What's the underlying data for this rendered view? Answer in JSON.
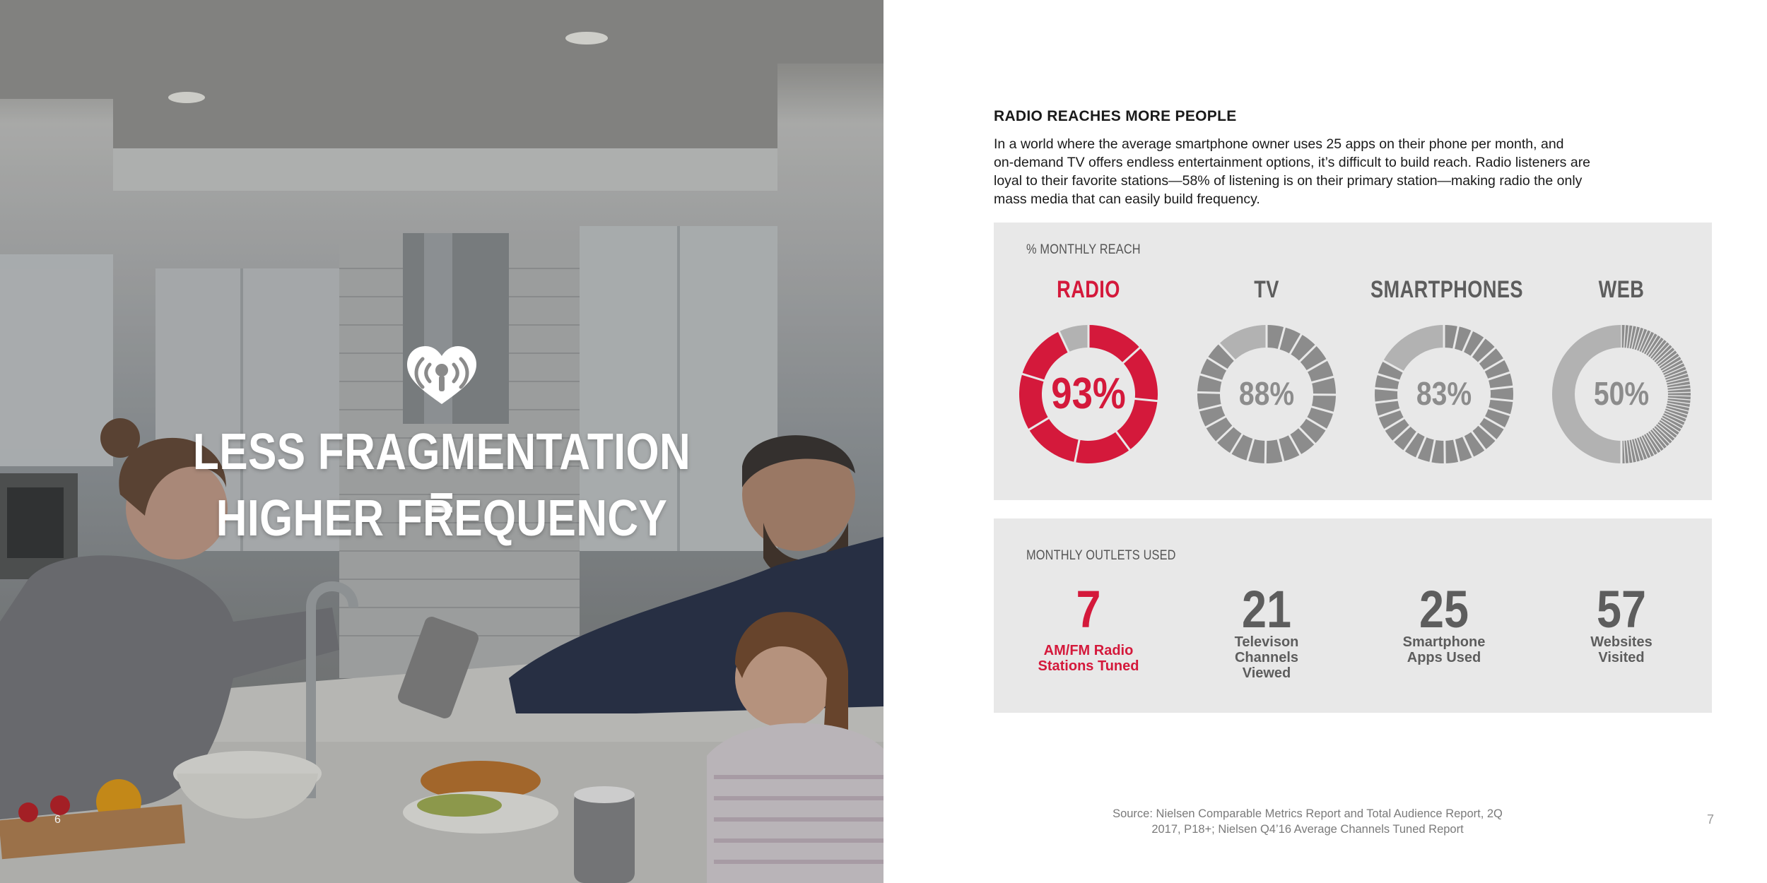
{
  "colors": {
    "accent_red": "#d4193b",
    "gray_dark": "#5d5d5d",
    "gray_mid": "#8c8c8c",
    "gray_light": "#b2b2b2",
    "panel_bg": "#e8e8e8"
  },
  "left_page": {
    "logo_icon": "iheart-logo-icon",
    "headline_line1": "LESS FRAGMENTATION =",
    "headline_line2": "HIGHER FREQUENCY",
    "page_number": "6"
  },
  "right_page": {
    "section_title": "RADIO REACHES MORE PEOPLE",
    "intro_lines": [
      "In a world where the average smartphone owner uses 25 apps on their phone per month, and",
      "on-demand TV offers endless entertainment options, it’s difficult to build reach.  Radio listeners are",
      "loyal to their favorite stations—58% of listening is on their primary station—making radio the only",
      "mass media that can easily build frequency."
    ],
    "reach_panel": {
      "label": "% MONTHLY REACH",
      "items": [
        {
          "category": "RADIO",
          "value_label": "93%",
          "highlight": true
        },
        {
          "category": "TV",
          "value_label": "88%",
          "highlight": false
        },
        {
          "category": "SMARTPHONES",
          "value_label": "83%",
          "highlight": false
        },
        {
          "category": "WEB",
          "value_label": "50%",
          "highlight": false
        }
      ]
    },
    "outlets_panel": {
      "label": "MONTHLY OUTLETS USED",
      "items": [
        {
          "value": "7",
          "label_lines": [
            "AM/FM Radio",
            "Stations Tuned"
          ],
          "highlight": true
        },
        {
          "value": "21",
          "label_lines": [
            "Televison",
            "Channels",
            "Viewed"
          ],
          "highlight": false
        },
        {
          "value": "25",
          "label_lines": [
            "Smartphone",
            "Apps Used"
          ],
          "highlight": false
        },
        {
          "value": "57",
          "label_lines": [
            "Websites",
            "Visited"
          ],
          "highlight": false
        }
      ]
    },
    "source_lines": [
      "Source: Nielsen Comparable Metrics Report and Total Audience Report, 2Q",
      "2017, P18+; Nielsen Q4’16 Average Channels Tuned Report"
    ],
    "page_number": "7"
  },
  "chart_data": {
    "type": "donut",
    "title": "% MONTHLY REACH",
    "categories": [
      "RADIO",
      "TV",
      "SMARTPHONES",
      "WEB"
    ],
    "values": [
      93,
      88,
      83,
      50
    ],
    "segment_counts": [
      7,
      21,
      25,
      57
    ],
    "segment_counts_label": "MONTHLY OUTLETS USED",
    "ylim": [
      0,
      100
    ]
  }
}
